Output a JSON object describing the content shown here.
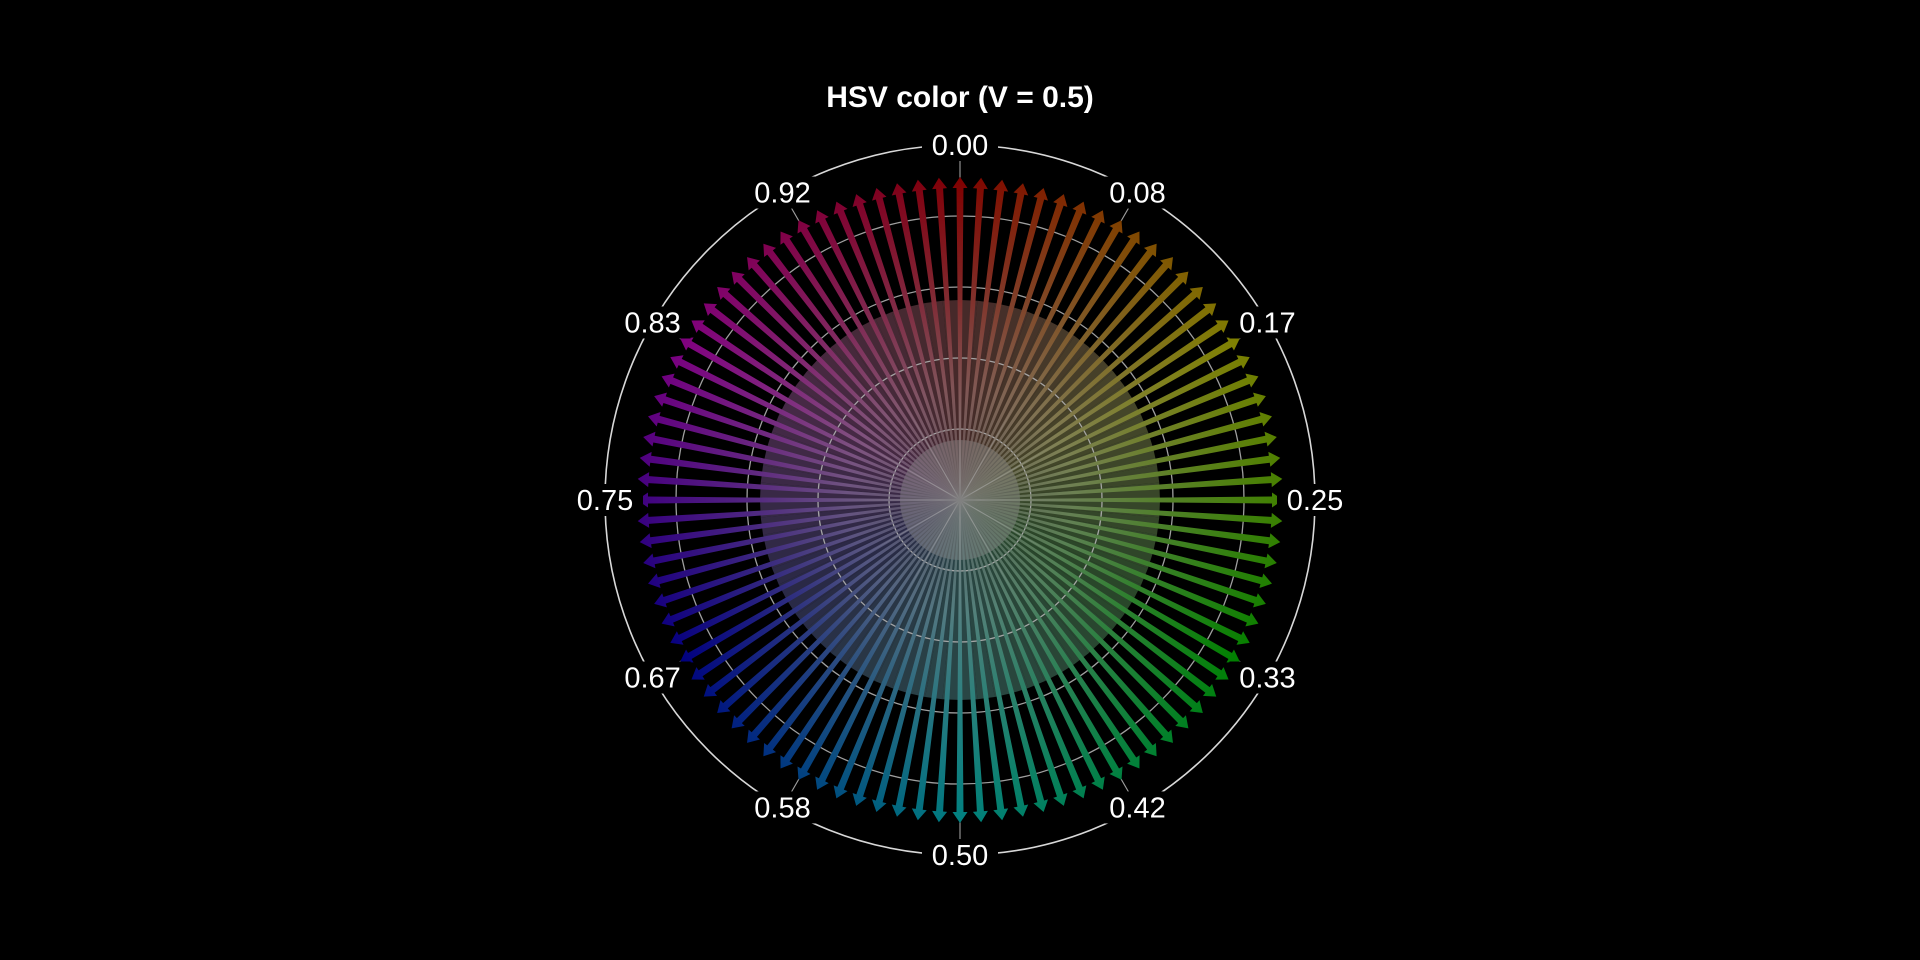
{
  "chart_data": {
    "type": "polar-quiver",
    "title": "HSV color (V = 0.5)",
    "value": 0.5,
    "arrow_count": 96,
    "hue_range": [
      0,
      1
    ],
    "radius_range": [
      0,
      1
    ],
    "direction": "clockwise",
    "zero_location": "top",
    "angular_tick_labels": [
      "0.00",
      "0.08",
      "0.17",
      "0.25",
      "0.33",
      "0.42",
      "0.50",
      "0.58",
      "0.67",
      "0.75",
      "0.83",
      "0.92"
    ],
    "grid": true,
    "colors": {
      "background": "#000000",
      "grid": "#b0b0b0",
      "frame": "#d8d8d8",
      "text": "#ffffff"
    }
  }
}
